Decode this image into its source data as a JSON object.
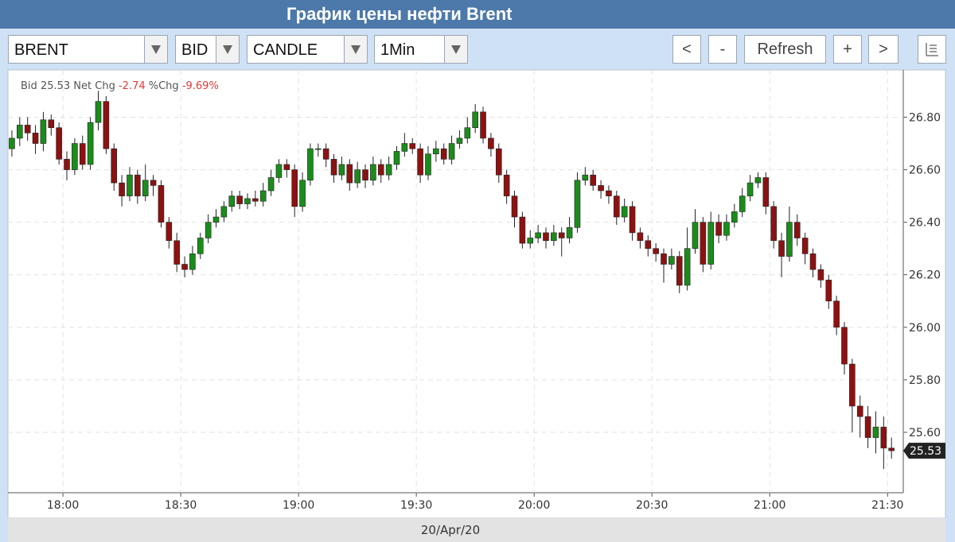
{
  "header": {
    "title": "График цены нефти Brent"
  },
  "toolbar": {
    "symbol": "BRENT",
    "side": "BID",
    "style": "CANDLE",
    "interval": "1Min",
    "buttons": [
      "<",
      "-",
      "Refresh",
      "+",
      ">"
    ]
  },
  "chart_data": {
    "type": "candlestick",
    "info": {
      "bid_label": "Bid",
      "bid": 25.53,
      "net_label": "Net Chg",
      "net": -2.74,
      "pct_label": "%Chg",
      "pct": {
        "value": -9.69,
        "label": "-9.69%"
      }
    },
    "x_label": "20/Apr/20",
    "up_color": "#1b8c1b",
    "down_color": "#8c1212",
    "grid": true,
    "xlim": [
      "17:46",
      "21:34"
    ],
    "xticks": [
      "18:00",
      "18:30",
      "19:00",
      "19:30",
      "20:00",
      "20:30",
      "21:00",
      "21:30"
    ],
    "ylim": [
      25.37,
      26.98
    ],
    "yticks": [
      {
        "value": 25.6,
        "label": "25.60"
      },
      {
        "value": 25.8,
        "label": "25.80"
      },
      {
        "value": 26.0,
        "label": "26.00"
      },
      {
        "value": 26.2,
        "label": "26.20"
      },
      {
        "value": 26.4,
        "label": "26.40"
      },
      {
        "value": 26.6,
        "label": "26.60"
      },
      {
        "value": 26.8,
        "label": "26.80"
      }
    ],
    "x": [
      "17:47",
      "17:49",
      "17:51",
      "17:53",
      "17:55",
      "17:57",
      "17:59",
      "18:01",
      "18:03",
      "18:05",
      "18:07",
      "18:09",
      "18:11",
      "18:13",
      "18:15",
      "18:17",
      "18:19",
      "18:21",
      "18:23",
      "18:25",
      "18:27",
      "18:29",
      "18:31",
      "18:33",
      "18:35",
      "18:37",
      "18:39",
      "18:41",
      "18:43",
      "18:45",
      "18:47",
      "18:49",
      "18:51",
      "18:53",
      "18:55",
      "18:57",
      "18:59",
      "19:01",
      "19:03",
      "19:05",
      "19:07",
      "19:09",
      "19:11",
      "19:13",
      "19:15",
      "19:17",
      "19:19",
      "19:21",
      "19:23",
      "19:25",
      "19:27",
      "19:29",
      "19:31",
      "19:33",
      "19:35",
      "19:37",
      "19:39",
      "19:41",
      "19:43",
      "19:45",
      "19:47",
      "19:49",
      "19:51",
      "19:53",
      "19:55",
      "19:57",
      "19:59",
      "20:01",
      "20:03",
      "20:05",
      "20:07",
      "20:09",
      "20:11",
      "20:13",
      "20:15",
      "20:17",
      "20:19",
      "20:21",
      "20:23",
      "20:25",
      "20:27",
      "20:29",
      "20:31",
      "20:33",
      "20:35",
      "20:37",
      "20:39",
      "20:41",
      "20:43",
      "20:45",
      "20:47",
      "20:49",
      "20:51",
      "20:53",
      "20:55",
      "20:57",
      "20:59",
      "21:01",
      "21:03",
      "21:05",
      "21:07",
      "21:09",
      "21:11",
      "21:13",
      "21:15",
      "21:17",
      "21:19",
      "21:21",
      "21:23",
      "21:25",
      "21:27",
      "21:29",
      "21:31"
    ],
    "open": [
      26.68,
      26.72,
      26.77,
      26.74,
      26.7,
      26.79,
      26.76,
      26.64,
      26.6,
      26.7,
      26.62,
      26.78,
      26.86,
      26.68,
      26.55,
      26.5,
      26.58,
      26.5,
      26.56,
      26.54,
      26.4,
      26.33,
      26.24,
      26.22,
      26.28,
      26.34,
      26.4,
      26.42,
      26.46,
      26.5,
      26.47,
      26.49,
      26.48,
      26.52,
      26.57,
      26.62,
      26.6,
      26.46,
      26.56,
      26.68,
      26.68,
      26.64,
      26.58,
      26.62,
      26.55,
      26.6,
      26.56,
      26.62,
      26.58,
      26.62,
      26.67,
      26.7,
      26.68,
      26.58,
      26.66,
      26.68,
      26.64,
      26.7,
      26.72,
      26.76,
      26.82,
      26.72,
      26.68,
      26.58,
      26.5,
      26.42,
      26.32,
      26.34,
      26.36,
      26.33,
      26.36,
      26.34,
      26.38,
      26.56,
      26.58,
      26.54,
      26.52,
      26.5,
      26.42,
      26.46,
      26.36,
      26.33,
      26.3,
      26.28,
      26.24,
      26.27,
      26.16,
      26.3,
      26.4,
      26.24,
      26.4,
      26.35,
      26.4,
      26.44,
      26.5,
      26.55,
      26.57,
      26.46,
      26.33,
      26.27,
      26.4,
      26.34,
      26.28,
      26.22,
      26.18,
      26.1,
      26.0,
      25.86,
      25.7,
      25.66,
      25.58,
      25.62,
      25.54
    ],
    "high": [
      26.75,
      26.8,
      26.8,
      26.77,
      26.82,
      26.81,
      26.78,
      26.67,
      26.72,
      26.73,
      26.8,
      26.9,
      26.88,
      26.7,
      26.58,
      26.61,
      26.6,
      26.62,
      26.58,
      26.56,
      26.42,
      26.36,
      26.27,
      26.31,
      26.36,
      26.43,
      26.45,
      26.48,
      26.52,
      26.52,
      26.51,
      26.52,
      26.55,
      26.6,
      26.64,
      26.64,
      26.62,
      26.59,
      26.7,
      26.7,
      26.7,
      26.66,
      26.65,
      26.64,
      26.63,
      26.62,
      26.65,
      26.64,
      26.65,
      26.69,
      26.74,
      26.72,
      26.7,
      26.69,
      26.71,
      26.7,
      26.73,
      26.75,
      26.8,
      26.85,
      26.84,
      26.74,
      26.7,
      26.6,
      26.52,
      26.44,
      26.37,
      26.39,
      26.38,
      26.39,
      26.38,
      26.42,
      26.59,
      26.61,
      26.6,
      26.56,
      26.54,
      26.52,
      26.49,
      26.48,
      26.38,
      26.35,
      26.32,
      26.3,
      26.3,
      26.29,
      26.38,
      26.45,
      26.42,
      26.44,
      26.43,
      26.43,
      26.47,
      26.53,
      26.58,
      26.59,
      26.59,
      26.48,
      26.36,
      26.46,
      26.43,
      26.36,
      26.3,
      26.24,
      26.2,
      26.12,
      26.02,
      25.88,
      25.74,
      25.7,
      25.68,
      25.66,
      25.58
    ],
    "low": [
      26.65,
      26.69,
      26.71,
      26.66,
      26.67,
      26.73,
      26.62,
      26.56,
      26.58,
      26.6,
      26.6,
      26.75,
      26.66,
      26.52,
      26.46,
      26.48,
      26.47,
      26.48,
      26.5,
      26.38,
      26.3,
      26.21,
      26.19,
      26.2,
      26.26,
      26.32,
      26.38,
      26.4,
      26.44,
      26.45,
      26.45,
      26.46,
      26.46,
      26.5,
      26.55,
      26.57,
      26.42,
      26.44,
      26.54,
      26.65,
      26.61,
      26.55,
      26.56,
      26.52,
      26.53,
      26.53,
      26.54,
      26.55,
      26.56,
      26.6,
      26.65,
      26.66,
      26.55,
      26.56,
      26.63,
      26.62,
      26.62,
      26.68,
      26.7,
      26.74,
      26.7,
      26.65,
      26.55,
      26.47,
      26.38,
      26.3,
      26.3,
      26.32,
      26.3,
      26.31,
      26.27,
      26.32,
      26.36,
      26.54,
      26.52,
      26.49,
      26.47,
      26.39,
      26.4,
      26.33,
      26.3,
      26.27,
      26.25,
      26.17,
      26.22,
      26.13,
      26.14,
      26.28,
      26.21,
      26.22,
      26.32,
      26.33,
      26.38,
      26.42,
      26.48,
      26.53,
      26.43,
      26.3,
      26.19,
      26.25,
      26.31,
      26.24,
      26.19,
      26.15,
      26.07,
      25.97,
      25.82,
      25.6,
      25.58,
      25.54,
      25.52,
      25.46,
      25.5
    ],
    "close": [
      26.72,
      26.77,
      26.74,
      26.7,
      26.79,
      26.76,
      26.64,
      26.6,
      26.7,
      26.62,
      26.78,
      26.86,
      26.68,
      26.55,
      26.5,
      26.58,
      26.5,
      26.56,
      26.54,
      26.4,
      26.33,
      26.24,
      26.22,
      26.28,
      26.34,
      26.4,
      26.42,
      26.46,
      26.5,
      26.47,
      26.49,
      26.48,
      26.52,
      26.57,
      26.62,
      26.6,
      26.46,
      26.56,
      26.68,
      26.68,
      26.64,
      26.58,
      26.62,
      26.55,
      26.6,
      26.56,
      26.62,
      26.58,
      26.62,
      26.67,
      26.7,
      26.68,
      26.58,
      26.66,
      26.68,
      26.64,
      26.7,
      26.72,
      26.76,
      26.82,
      26.72,
      26.68,
      26.58,
      26.5,
      26.42,
      26.32,
      26.34,
      26.36,
      26.33,
      26.36,
      26.34,
      26.38,
      26.56,
      26.58,
      26.54,
      26.52,
      26.5,
      26.42,
      26.46,
      26.36,
      26.33,
      26.3,
      26.28,
      26.24,
      26.27,
      26.16,
      26.3,
      26.4,
      26.24,
      26.4,
      26.35,
      26.4,
      26.44,
      26.5,
      26.55,
      26.57,
      26.46,
      26.33,
      26.27,
      26.4,
      26.34,
      26.28,
      26.22,
      26.18,
      26.1,
      26.0,
      25.86,
      25.7,
      25.66,
      25.58,
      25.62,
      25.54,
      25.53
    ]
  }
}
